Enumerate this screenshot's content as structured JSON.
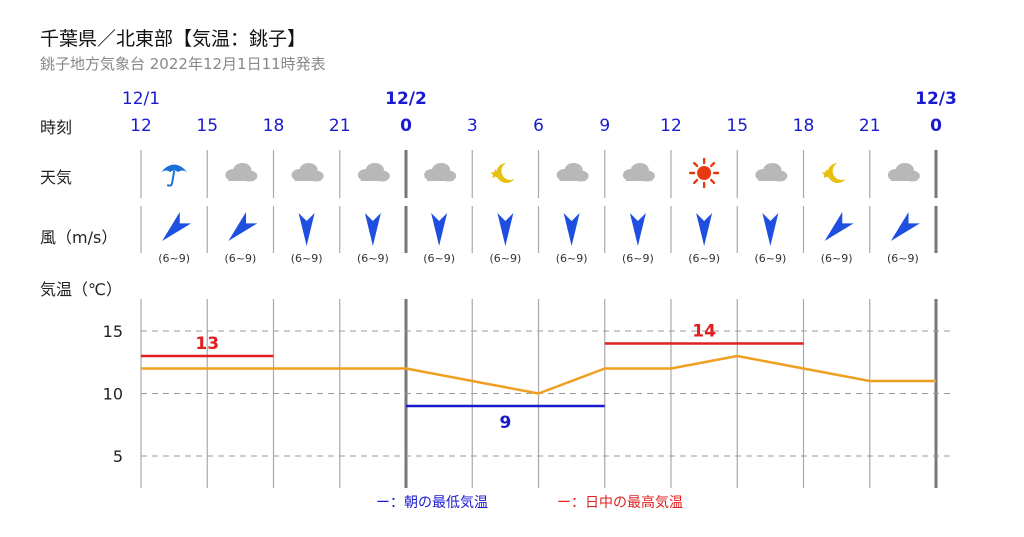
{
  "header": {
    "title": "千葉県／北東部【気温：銚子】",
    "subtitle": "銚子地方気象台 2022年12月1日11時発表"
  },
  "labels": {
    "time": "時刻",
    "weather": "天気",
    "wind": "風（m/s）",
    "temp": "気温（℃）"
  },
  "dates": [
    {
      "slot": 0,
      "label": "12/1",
      "bold": false
    },
    {
      "slot": 4,
      "label": "12/2",
      "bold": true
    },
    {
      "slot": 12,
      "label": "12/3",
      "bold": true
    }
  ],
  "hours": [
    "12",
    "15",
    "18",
    "21",
    "0",
    "3",
    "6",
    "9",
    "12",
    "15",
    "18",
    "21",
    "0"
  ],
  "weather": [
    "umbrella-icon",
    "cloud-icon",
    "cloud-icon",
    "cloud-icon",
    "cloud-icon",
    "moon-icon",
    "cloud-icon",
    "cloud-icon",
    "sun-icon",
    "cloud-icon",
    "moon-icon",
    "cloud-icon"
  ],
  "wind": [
    {
      "dir": "NE",
      "speed": "(6~9)"
    },
    {
      "dir": "NE",
      "speed": "(6~9)"
    },
    {
      "dir": "N",
      "speed": "(6~9)"
    },
    {
      "dir": "N",
      "speed": "(6~9)"
    },
    {
      "dir": "N",
      "speed": "(6~9)"
    },
    {
      "dir": "N",
      "speed": "(6~9)"
    },
    {
      "dir": "N",
      "speed": "(6~9)"
    },
    {
      "dir": "N",
      "speed": "(6~9)"
    },
    {
      "dir": "N",
      "speed": "(6~9)"
    },
    {
      "dir": "N",
      "speed": "(6~9)"
    },
    {
      "dir": "NE",
      "speed": "(6~9)"
    },
    {
      "dir": "NE",
      "speed": "(6~9)"
    }
  ],
  "legend": {
    "min_label": "ー：朝の最低気温",
    "max_label": "ー：日中の最高気温"
  },
  "colors": {
    "line": "#f0a020",
    "max": "#e02020",
    "min": "#1a1ad0",
    "hour": "#1a1ad0",
    "arrow": "#1f4fe0",
    "umbrella": "#1a6fd6",
    "sun": "#e83a10",
    "moon": "#e8c010",
    "cloud": "#b8b8b8"
  },
  "chart_data": {
    "type": "line",
    "x": [
      "12",
      "15",
      "18",
      "21",
      "0",
      "3",
      "6",
      "9",
      "12",
      "15",
      "18",
      "21",
      "0"
    ],
    "series": [
      {
        "values": [
          12,
          12,
          12,
          12,
          12,
          11,
          10,
          12,
          12,
          13,
          12,
          11,
          11
        ]
      }
    ],
    "max_temps": [
      {
        "value": 13,
        "from": 0,
        "to": 2
      },
      {
        "value": 14,
        "from": 7,
        "to": 10
      }
    ],
    "min_temps": [
      {
        "value": 9,
        "from": 4,
        "to": 7
      }
    ],
    "ylim": [
      3,
      17
    ],
    "yticks": [
      5,
      10,
      15
    ],
    "grid": true
  }
}
